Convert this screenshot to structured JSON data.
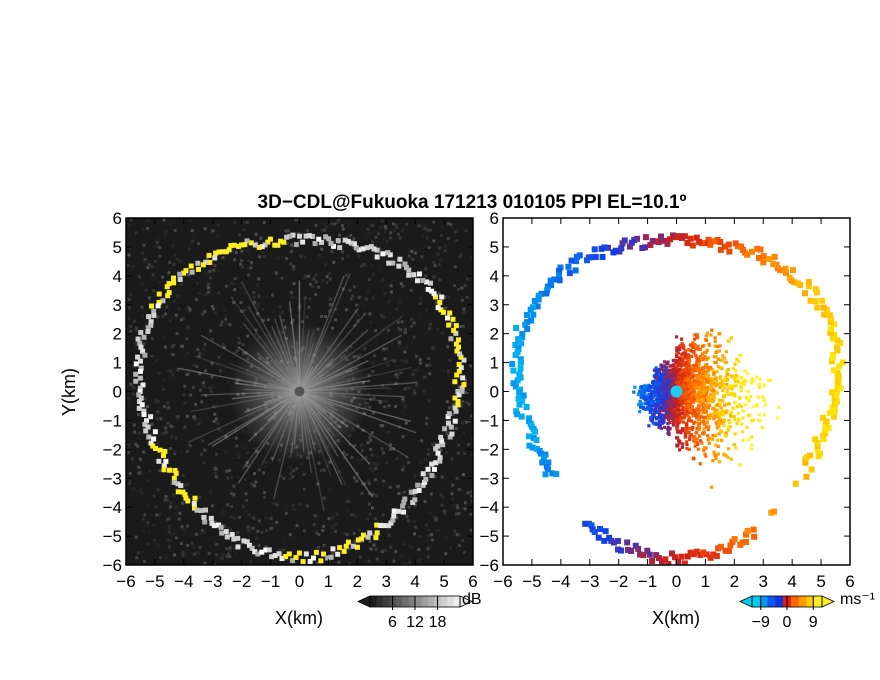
{
  "title": "3D−CDL@Fukuoka 171213 010105 PPI EL=10.1º",
  "colors": {
    "background": "#ffffff",
    "axis": "#000000",
    "echo_dark": "#1a1a1a",
    "echo_bright": "#ffffff",
    "echo_yellow": "#ffee22",
    "vel_cyan": "#22ccee",
    "vel_blue": "#1144ee",
    "vel_red": "#ee2200",
    "vel_orange": "#ff8800",
    "vel_yellow": "#ffee00"
  },
  "chart_data": [
    {
      "type": "heatmap",
      "panel": "left",
      "variable": "reflectivity",
      "xlabel": "X(km)",
      "ylabel": "Y(km)",
      "xlim": [
        -6,
        6
      ],
      "ylim": [
        -6,
        6
      ],
      "xticks": [
        "−6",
        "−5",
        "−4",
        "−3",
        "−2",
        "−1",
        "0",
        "1",
        "2",
        "3",
        "4",
        "5",
        "6"
      ],
      "yticks": [
        "6",
        "5",
        "4",
        "3",
        "2",
        "1",
        "0",
        "−1",
        "−2",
        "−3",
        "−4",
        "−5",
        "−6"
      ],
      "colorbar": {
        "unit": "dB",
        "ticks": [
          "6",
          "12",
          "18"
        ],
        "range": [
          0,
          24
        ]
      },
      "features": {
        "ring_radius_km": 5.5,
        "ring_yellow_arcs_deg": [
          [
            95,
            150
          ],
          [
            355,
            395
          ],
          [
            200,
            230
          ],
          [
            265,
            300
          ]
        ],
        "radial_streak_count": 90,
        "streak_max_length_km": 4.5
      }
    },
    {
      "type": "heatmap",
      "panel": "right",
      "variable": "doppler_velocity",
      "xlabel": "X(km)",
      "xlim": [
        -6,
        6
      ],
      "ylim": [
        -6,
        6
      ],
      "xticks": [
        "−6",
        "−5",
        "−4",
        "−3",
        "−2",
        "−1",
        "0",
        "1",
        "2",
        "3",
        "4",
        "5",
        "6"
      ],
      "colorbar": {
        "unit": "ms⁻¹",
        "ticks": [
          "−9",
          "0",
          "9"
        ],
        "range": [
          -12,
          12
        ]
      },
      "features": {
        "ring_radius_km": 5.5,
        "west_velocity_ms": -9,
        "east_velocity_ms": 9,
        "radar_site_km": [
          0,
          0
        ],
        "central_cluster_radius_km": 2.6
      }
    }
  ]
}
